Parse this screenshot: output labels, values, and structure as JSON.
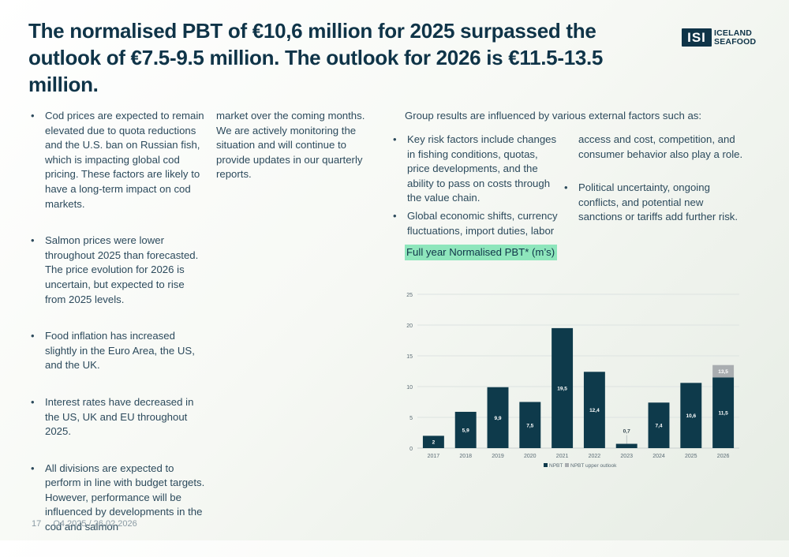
{
  "title": "The normalised PBT of €10,6 million for 2025 surpassed the outlook of €7.5-9.5 million. The outlook for 2026 is €11.5-13.5 million.",
  "logo": {
    "mark": "ISI",
    "line1": "ICELAND",
    "line2": "SEAFOOD"
  },
  "column1": [
    "Cod prices are expected to remain elevated due to quota reductions and the U.S. ban on Russian fish, which is impacting global cod pricing. These factors are likely to have a long-term impact on cod markets.",
    "Salmon prices were lower throughout 2025 than forecasted. The price evolution for 2026 is uncertain, but expected to rise from 2025 levels.",
    "Food inflation has increased slightly in the Euro Area, the US, and the UK.",
    "Interest rates have decreased in the US, UK and EU throughout 2025.",
    "All divisions are expected to perform in line with budget targets. However, performance will be influenced by developments in the cod and salmon"
  ],
  "column2": "market over the coming months. We are actively monitoring the situation and will continue to provide updates in our quarterly reports.",
  "risks_intro": "Group results are influenced by various external factors such as:",
  "column3": [
    "Key risk factors include changes in fishing conditions, quotas, price developments, and the ability to pass on costs through the value chain.",
    "Global economic shifts, currency fluctuations, import duties, labor"
  ],
  "column4_continuation": "access and cost, competition, and consumer behavior also play a role.",
  "column4": [
    "Political uncertainty, ongoing conflicts, and potential new sanctions or tariffs add further risk."
  ],
  "chart_title": "Full year Normalised PBT* (m’s)",
  "chart_data": {
    "type": "bar",
    "stacked": true,
    "categories": [
      "2017",
      "2018",
      "2019",
      "2020",
      "2021",
      "2022",
      "2023",
      "2024",
      "2025",
      "2026"
    ],
    "series": [
      {
        "name": "NPBT",
        "color": "#0e3a4b",
        "values": [
          2,
          5.9,
          9.9,
          7.5,
          19.5,
          12.4,
          0.7,
          7.4,
          10.6,
          11.5
        ],
        "labels": [
          "2",
          "5,9",
          "9,9",
          "7,5",
          "19,5",
          "12,4",
          "0,7",
          "7,4",
          "10,6",
          "11,5"
        ]
      },
      {
        "name": "NPBT upper outlook",
        "color": "#a9adb0",
        "values": [
          0,
          0,
          0,
          0,
          0,
          0,
          0,
          0,
          0,
          2
        ],
        "labels": [
          "",
          "",
          "",
          "",
          "",
          "",
          "",
          "",
          "",
          "13,5"
        ]
      }
    ],
    "yticks": [
      "0",
      "5",
      "10",
      "15",
      "20",
      "25"
    ],
    "ylim": [
      0,
      25
    ],
    "grid": true,
    "legend_position": "bottom"
  },
  "footer": {
    "page": "17",
    "period": "Q4 2025 / 26.02.2026"
  }
}
